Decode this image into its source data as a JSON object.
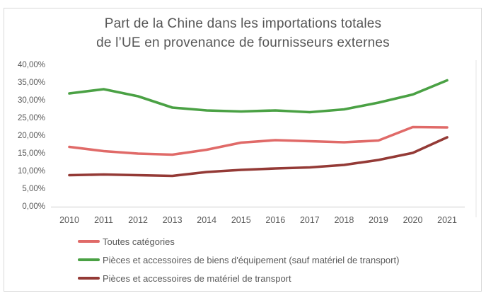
{
  "title": {
    "line1": "Part de la Chine dans les importations totales",
    "line2": "de l’UE en provenance de fournisseurs externes"
  },
  "chart_data": {
    "type": "line",
    "title": "Part de la Chine dans les importations totales de l’UE en provenance de fournisseurs externes",
    "xlabel": "",
    "ylabel": "",
    "x": [
      2010,
      2011,
      2012,
      2013,
      2014,
      2015,
      2016,
      2017,
      2018,
      2019,
      2020,
      2021
    ],
    "series": [
      {
        "name": "Toutes catégories",
        "color": "#e06a68",
        "values": [
          16.7,
          15.5,
          14.8,
          14.5,
          15.9,
          17.9,
          18.6,
          18.3,
          18.0,
          18.5,
          22.3,
          22.2
        ]
      },
      {
        "name": "Pièces et accessoires de biens d'équipement (sauf matériel de transport)",
        "color": "#4aa144",
        "values": [
          31.8,
          33.0,
          31.0,
          27.8,
          27.0,
          26.7,
          27.0,
          26.5,
          27.3,
          29.2,
          31.5,
          35.5
        ]
      },
      {
        "name": "Pièces et accessoires de matériel de transport",
        "color": "#943a36",
        "values": [
          8.7,
          8.9,
          8.7,
          8.5,
          9.6,
          10.2,
          10.6,
          10.9,
          11.6,
          13.0,
          15.0,
          19.4
        ]
      }
    ],
    "ylim": [
      0,
      40
    ],
    "yticks": [
      {
        "value": 40,
        "label": "40,00%"
      },
      {
        "value": 35,
        "label": "35,00%"
      },
      {
        "value": 30,
        "label": "30,00%"
      },
      {
        "value": 25,
        "label": "25,00%"
      },
      {
        "value": 20,
        "label": "20,00%"
      },
      {
        "value": 15,
        "label": "15,00%"
      },
      {
        "value": 10,
        "label": "10,00%"
      },
      {
        "value": 5,
        "label": "5,00%"
      },
      {
        "value": 0,
        "label": "0,00%"
      }
    ],
    "grid": false,
    "legend_position": "bottom-left"
  },
  "style": {
    "background": "#ffffff",
    "frame_border_color": "#d9d9d9",
    "axis_line_color": "#d9d9d9",
    "axis_text_color": "#595959",
    "title_color": "#555555"
  }
}
